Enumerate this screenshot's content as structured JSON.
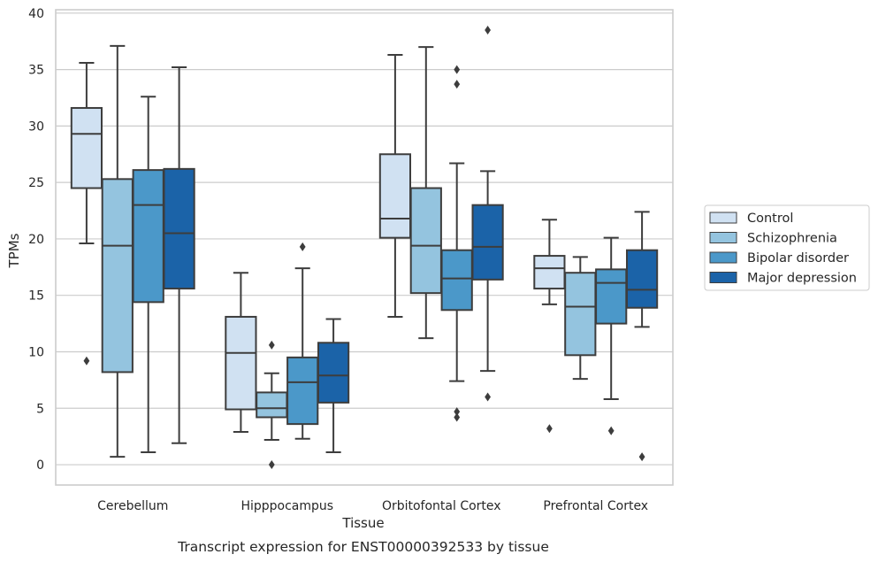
{
  "chart_data": {
    "type": "box",
    "title": "",
    "caption": "Transcript expression for ENST00000392533 by tissue",
    "xlabel": "Tissue",
    "ylabel": "TPMs",
    "ylim": [
      -1.8,
      40.3
    ],
    "yticks": [
      "0",
      "5",
      "10",
      "15",
      "20",
      "25",
      "30",
      "35",
      "40"
    ],
    "ytick_values": [
      0,
      5,
      10,
      15,
      20,
      25,
      30,
      35,
      40
    ],
    "grid": "horizontal",
    "legend_position": "right",
    "categories": [
      "Cerebellum",
      "Hipppocampus",
      "Orbitofontal Cortex",
      "Prefrontal Cortex"
    ],
    "series": [
      {
        "name": "Control",
        "color": "#d0e1f2",
        "boxes": [
          {
            "whislo": 19.6,
            "q1": 24.5,
            "med": 29.3,
            "q3": 31.6,
            "whishi": 35.6,
            "fliers": [
              9.2
            ]
          },
          {
            "whislo": 2.9,
            "q1": 4.9,
            "med": 9.9,
            "q3": 13.1,
            "whishi": 17.0,
            "fliers": []
          },
          {
            "whislo": 13.1,
            "q1": 20.1,
            "med": 21.8,
            "q3": 27.5,
            "whishi": 36.3,
            "fliers": []
          },
          {
            "whislo": 14.2,
            "q1": 15.6,
            "med": 17.4,
            "q3": 18.5,
            "whishi": 21.7,
            "fliers": [
              3.2
            ]
          }
        ]
      },
      {
        "name": "Schizophrenia",
        "color": "#94c4df",
        "boxes": [
          {
            "whislo": 0.7,
            "q1": 8.2,
            "med": 19.4,
            "q3": 25.3,
            "whishi": 37.1,
            "fliers": []
          },
          {
            "whislo": 2.2,
            "q1": 4.2,
            "med": 5.0,
            "q3": 6.4,
            "whishi": 8.1,
            "fliers": [
              10.6,
              0.0
            ]
          },
          {
            "whislo": 11.2,
            "q1": 15.2,
            "med": 19.4,
            "q3": 24.5,
            "whishi": 37.0,
            "fliers": []
          },
          {
            "whislo": 7.6,
            "q1": 9.7,
            "med": 14.0,
            "q3": 17.0,
            "whishi": 18.4,
            "fliers": []
          }
        ]
      },
      {
        "name": "Bipolar disorder",
        "color": "#4b98c9",
        "boxes": [
          {
            "whislo": 1.1,
            "q1": 14.4,
            "med": 23.0,
            "q3": 26.1,
            "whishi": 32.6,
            "fliers": []
          },
          {
            "whislo": 2.3,
            "q1": 3.6,
            "med": 7.3,
            "q3": 9.5,
            "whishi": 17.4,
            "fliers": [
              19.3
            ]
          },
          {
            "whislo": 7.4,
            "q1": 13.7,
            "med": 16.5,
            "q3": 19.0,
            "whishi": 26.7,
            "fliers": [
              35.0,
              33.7,
              4.7,
              4.2
            ]
          },
          {
            "whislo": 5.8,
            "q1": 12.5,
            "med": 16.1,
            "q3": 17.3,
            "whishi": 20.1,
            "fliers": [
              3.0
            ]
          }
        ]
      },
      {
        "name": "Major depression",
        "color": "#1b63a8",
        "boxes": [
          {
            "whislo": 1.9,
            "q1": 15.6,
            "med": 20.5,
            "q3": 26.2,
            "whishi": 35.2,
            "fliers": []
          },
          {
            "whislo": 1.1,
            "q1": 5.5,
            "med": 7.9,
            "q3": 10.8,
            "whishi": 12.9,
            "fliers": []
          },
          {
            "whislo": 8.3,
            "q1": 16.4,
            "med": 19.3,
            "q3": 23.0,
            "whishi": 26.0,
            "fliers": [
              38.5,
              6.0
            ]
          },
          {
            "whislo": 12.2,
            "q1": 13.9,
            "med": 15.5,
            "q3": 19.0,
            "whishi": 22.4,
            "fliers": [
              0.7
            ]
          }
        ]
      }
    ]
  }
}
